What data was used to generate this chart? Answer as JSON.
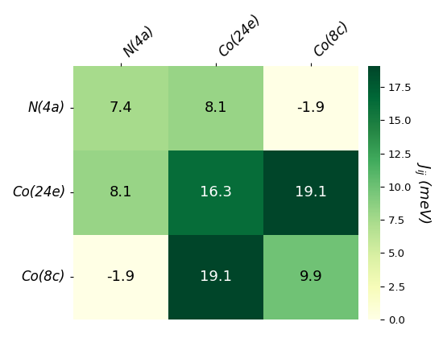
{
  "row_labels": [
    "N(4a)",
    "Co(24e)",
    "Co(8c)"
  ],
  "col_labels": [
    "N(4a)",
    "Co(24e)",
    "Co(8c)"
  ],
  "values": [
    [
      7.4,
      8.1,
      -1.9
    ],
    [
      8.1,
      16.3,
      19.1
    ],
    [
      -1.9,
      19.1,
      9.9
    ]
  ],
  "cmap": "YlGn",
  "vmin": -1.9,
  "vmax": 19.1,
  "colorbar_label": "$J_{ij}$ (meV)",
  "colorbar_ticks": [
    0.0,
    2.5,
    5.0,
    7.5,
    10.0,
    12.5,
    15.0,
    17.5
  ],
  "font_size_labels": 12,
  "font_size_values": 13,
  "text_color_threshold": 10.0,
  "background_color": "#ffffff",
  "annot_fmt_positive": "{:.1f}",
  "annot_fmt_negative": "{:.1f}"
}
